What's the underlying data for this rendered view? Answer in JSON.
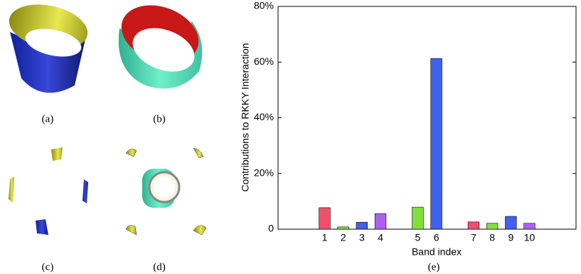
{
  "panels": [
    "(a)",
    "(b)",
    "(c)",
    "(d)"
  ],
  "chart_data": {
    "type": "bar",
    "caption": "(e)",
    "x_label": "Band index",
    "y_label": "Contributions to RKKY Interaction",
    "categories": [
      null,
      null,
      "1",
      "2",
      "3",
      "4",
      null,
      "5",
      "6",
      null,
      "7",
      "8",
      "9",
      "10",
      null,
      null
    ],
    "values": [
      null,
      null,
      7.7,
      0.8,
      2.5,
      5.6,
      null,
      7.9,
      61.3,
      null,
      2.6,
      2.1,
      4.6,
      2.1,
      null,
      null
    ],
    "colors": [
      null,
      null,
      "#f0506e",
      "#80e040",
      "#4060f0",
      "#b060f0",
      null,
      "#80e040",
      "#4060f0",
      null,
      "#f0506e",
      "#80e040",
      "#4060f0",
      "#b060f0",
      null,
      null
    ],
    "ylim": [
      0,
      80
    ],
    "yticks": [
      0,
      {
        "value": 20,
        "label": "20%"
      },
      {
        "value": 40,
        "label": "40%"
      },
      {
        "value": 60,
        "label": "60%"
      },
      {
        "value": 80,
        "label": "80%"
      }
    ]
  }
}
